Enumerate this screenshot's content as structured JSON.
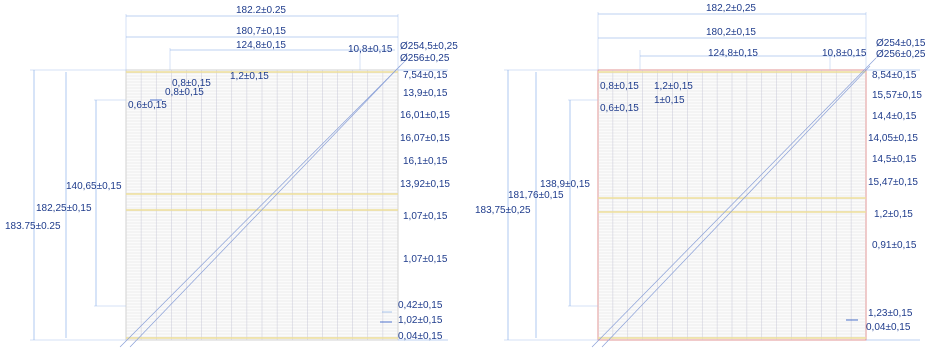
{
  "left": {
    "top": [
      "182.2±0.25",
      "180,7±0,15",
      "124,8±0,15",
      "10,8±0,15"
    ],
    "diameters": [
      "Ø254,5±0,25",
      "Ø256±0,25"
    ],
    "inner": [
      "0,8±0,15",
      "1,2±0,15",
      "0,8±0,15",
      "0,6±0,15"
    ],
    "left_vertical": [
      "140,65±0,15",
      "182,25±0,15",
      "183.75±0.25"
    ],
    "right": [
      "7,54±0,15",
      "13,9±0,15",
      "16,01±0,15",
      "16,07±0,15",
      "16,1±0,15",
      "13,92±0,15",
      "1,07±0,15",
      "1,07±0,15",
      "0,42±0,15",
      "1,02±0,15",
      "0,04±0,15"
    ]
  },
  "right_panel": {
    "top": [
      "182,2±0,25",
      "180,2±0,15",
      "124,8±0,15",
      "10,8±0,15"
    ],
    "diameters": [
      "Ø254±0,15",
      "Ø256±0,25"
    ],
    "inner": [
      "0,8±0,15",
      "1,2±0,15",
      "1±0,15",
      "0,6±0,15"
    ],
    "left_vertical": [
      "138,9±0,15",
      "181,76±0,15",
      "183,75±0,25"
    ],
    "right": [
      "8,54±0,15",
      "15,57±0,15",
      "14,4±0,15",
      "14,05±0,15",
      "14,5±0,15",
      "15,47±0,15",
      "1,2±0,15",
      "0,91±0,15",
      "1,23±0,15",
      "0,04±0,15"
    ]
  }
}
